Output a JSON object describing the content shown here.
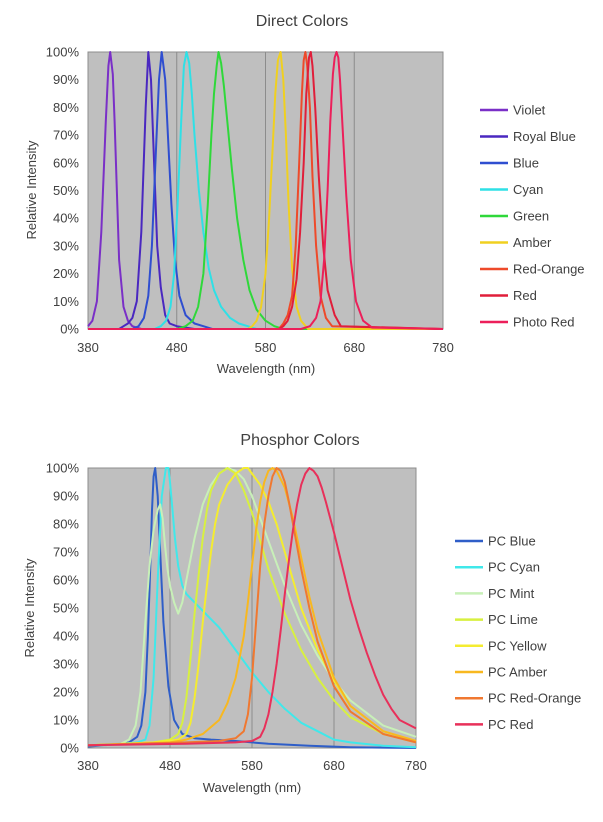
{
  "chart_data": [
    {
      "type": "line",
      "title": "Direct Colors",
      "xlabel": "Wavelength (nm)",
      "ylabel": "Relative Intensity",
      "xlim": [
        380,
        780
      ],
      "ylim": [
        0,
        100
      ],
      "xticks": [
        380,
        480,
        580,
        680,
        780
      ],
      "yticks": [
        "0%",
        "10%",
        "20%",
        "30%",
        "40%",
        "50%",
        "60%",
        "70%",
        "80%",
        "90%",
        "100%"
      ],
      "grid": true,
      "legend": "right",
      "series": [
        {
          "name": "Violet",
          "color": "#7a2fc7",
          "x": [
            380,
            385,
            390,
            395,
            400,
            403,
            405,
            408,
            410,
            413,
            415,
            420,
            425,
            430,
            435,
            440,
            450,
            780
          ],
          "y": [
            1,
            3,
            10,
            35,
            75,
            95,
            100,
            92,
            75,
            45,
            25,
            8,
            3,
            1,
            0.5,
            0,
            0,
            0
          ]
        },
        {
          "name": "Royal Blue",
          "color": "#4a28c0",
          "x": [
            380,
            415,
            420,
            425,
            430,
            435,
            440,
            445,
            448,
            451,
            455,
            458,
            462,
            467,
            472,
            480,
            490,
            500,
            510,
            780
          ],
          "y": [
            0,
            0,
            1,
            2,
            4,
            10,
            35,
            80,
            100,
            90,
            55,
            30,
            15,
            5,
            2,
            1,
            0.5,
            0,
            0,
            0
          ]
        },
        {
          "name": "Blue",
          "color": "#2f4ed0",
          "x": [
            380,
            430,
            437,
            443,
            448,
            452,
            456,
            460,
            463,
            467,
            470,
            474,
            478,
            483,
            490,
            500,
            510,
            520,
            780
          ],
          "y": [
            0,
            0,
            1,
            4,
            12,
            30,
            60,
            90,
            100,
            90,
            70,
            45,
            25,
            12,
            5,
            2,
            1,
            0,
            0
          ]
        },
        {
          "name": "Cyan",
          "color": "#2fe0e6",
          "x": [
            380,
            455,
            462,
            468,
            473,
            477,
            481,
            485,
            488,
            491,
            494,
            497,
            500,
            505,
            510,
            516,
            522,
            530,
            540,
            550,
            560,
            570,
            780
          ],
          "y": [
            0,
            0,
            1,
            3,
            8,
            20,
            45,
            75,
            95,
            100,
            96,
            85,
            70,
            50,
            35,
            22,
            14,
            8,
            4,
            2,
            1,
            0,
            0
          ]
        },
        {
          "name": "Green",
          "color": "#2fd83a",
          "x": [
            380,
            480,
            490,
            498,
            504,
            510,
            515,
            519,
            522,
            525,
            527,
            530,
            533,
            537,
            542,
            548,
            555,
            562,
            570,
            580,
            590,
            600,
            780
          ],
          "y": [
            0,
            0,
            1,
            3,
            8,
            20,
            45,
            70,
            85,
            95,
            100,
            96,
            88,
            75,
            58,
            40,
            25,
            14,
            7,
            3,
            1,
            0,
            0
          ]
        },
        {
          "name": "Amber",
          "color": "#f0d020",
          "x": [
            380,
            560,
            565,
            570,
            575,
            580,
            584,
            588,
            591,
            594,
            597,
            600,
            603,
            606,
            610,
            615,
            620,
            628,
            780
          ],
          "y": [
            0,
            0,
            1,
            3,
            8,
            20,
            40,
            65,
            85,
            97,
            100,
            90,
            70,
            45,
            22,
            8,
            3,
            0,
            0
          ]
        },
        {
          "name": "Red-Orange",
          "color": "#ee4a2a",
          "x": [
            380,
            595,
            600,
            605,
            610,
            614,
            618,
            621,
            623,
            625,
            627,
            630,
            633,
            637,
            642,
            648,
            655,
            780
          ],
          "y": [
            0,
            0,
            2,
            5,
            12,
            30,
            60,
            85,
            97,
            100,
            95,
            80,
            55,
            30,
            12,
            4,
            1,
            0
          ]
        },
        {
          "name": "Red",
          "color": "#e01e3a",
          "x": [
            380,
            595,
            600,
            605,
            610,
            615,
            619,
            623,
            626,
            629,
            631,
            633,
            636,
            640,
            645,
            650,
            658,
            665,
            780
          ],
          "y": [
            0,
            0,
            1,
            3,
            8,
            18,
            35,
            60,
            85,
            98,
            100,
            95,
            80,
            55,
            30,
            14,
            5,
            1,
            0
          ]
        },
        {
          "name": "Photo Red",
          "color": "#ec1f5a",
          "x": [
            380,
            620,
            630,
            637,
            642,
            646,
            650,
            653,
            656,
            658,
            660,
            662,
            664,
            667,
            671,
            676,
            682,
            690,
            700,
            780
          ],
          "y": [
            0,
            0,
            1,
            4,
            10,
            25,
            50,
            75,
            92,
            98,
            100,
            98,
            90,
            72,
            48,
            25,
            10,
            3,
            0.5,
            0
          ]
        }
      ]
    },
    {
      "type": "line",
      "title": "Phosphor Colors",
      "xlabel": "Wavelength (nm)",
      "ylabel": "Relative Intensity",
      "xlim": [
        380,
        780
      ],
      "ylim": [
        0,
        100
      ],
      "xticks": [
        380,
        480,
        580,
        680,
        780
      ],
      "yticks": [
        "0%",
        "10%",
        "20%",
        "30%",
        "40%",
        "50%",
        "60%",
        "70%",
        "80%",
        "90%",
        "100%"
      ],
      "grid": true,
      "legend": "right",
      "series": [
        {
          "name": "PC Blue",
          "color": "#2f5ec8",
          "x": [
            380,
            400,
            420,
            430,
            440,
            445,
            450,
            453,
            456,
            458,
            460,
            462,
            465,
            468,
            472,
            478,
            485,
            495,
            510,
            530,
            560,
            600,
            650,
            700,
            780
          ],
          "y": [
            0.5,
            1,
            1.5,
            2,
            4,
            8,
            20,
            40,
            65,
            85,
            97,
            100,
            90,
            70,
            45,
            22,
            10,
            5,
            3.5,
            3,
            2.5,
            1.5,
            0.8,
            0.3,
            0
          ]
        },
        {
          "name": "PC Cyan",
          "color": "#40e8ea",
          "x": [
            380,
            420,
            440,
            450,
            455,
            460,
            465,
            470,
            475,
            478,
            480,
            483,
            486,
            490,
            495,
            500,
            510,
            520,
            530,
            540,
            550,
            560,
            570,
            580,
            600,
            620,
            640,
            660,
            680,
            700,
            740,
            780
          ],
          "y": [
            1,
            1.5,
            2,
            3,
            8,
            25,
            60,
            90,
            100,
            100,
            95,
            85,
            75,
            65,
            58,
            55,
            52,
            49,
            46,
            43,
            39,
            35,
            31,
            27,
            20,
            14,
            9,
            6,
            3,
            2,
            0.8,
            0.3
          ]
        },
        {
          "name": "PC Mint",
          "color": "#c8f0b8",
          "x": [
            380,
            400,
            420,
            430,
            438,
            444,
            450,
            455,
            460,
            465,
            468,
            471,
            474,
            477,
            480,
            485,
            490,
            495,
            500,
            510,
            520,
            530,
            540,
            550,
            560,
            570,
            580,
            590,
            600,
            620,
            640,
            660,
            680,
            700,
            740,
            780
          ],
          "y": [
            1,
            1,
            1.5,
            3,
            8,
            20,
            45,
            65,
            78,
            85,
            87,
            82,
            72,
            64,
            58,
            52,
            48,
            52,
            60,
            75,
            87,
            94,
            98,
            100,
            99,
            96,
            90,
            82,
            74,
            58,
            44,
            33,
            24,
            17,
            8,
            4
          ]
        },
        {
          "name": "PC Lime",
          "color": "#d8f040",
          "x": [
            380,
            430,
            460,
            480,
            490,
            495,
            500,
            505,
            510,
            515,
            520,
            525,
            530,
            540,
            550,
            560,
            570,
            580,
            590,
            600,
            620,
            640,
            660,
            680,
            700,
            740,
            780
          ],
          "y": [
            1,
            1.5,
            2,
            3,
            5,
            9,
            18,
            32,
            48,
            62,
            75,
            85,
            92,
            98,
            100,
            98,
            92,
            84,
            74,
            64,
            48,
            35,
            25,
            17,
            11,
            5,
            2
          ]
        },
        {
          "name": "PC Yellow",
          "color": "#f4ec30",
          "x": [
            380,
            460,
            490,
            500,
            505,
            510,
            515,
            520,
            525,
            530,
            535,
            540,
            550,
            560,
            570,
            575,
            580,
            590,
            600,
            610,
            620,
            630,
            640,
            660,
            680,
            700,
            740,
            780
          ],
          "y": [
            1,
            2,
            3,
            5,
            9,
            18,
            30,
            45,
            58,
            70,
            80,
            87,
            94,
            98,
            100,
            100,
            98,
            94,
            88,
            80,
            70,
            60,
            50,
            35,
            24,
            15,
            6,
            2.5
          ]
        },
        {
          "name": "PC Amber",
          "color": "#f8b820",
          "x": [
            380,
            480,
            500,
            520,
            540,
            550,
            560,
            570,
            575,
            580,
            585,
            590,
            595,
            600,
            605,
            610,
            620,
            630,
            640,
            650,
            660,
            680,
            700,
            740,
            780
          ],
          "y": [
            1,
            2,
            3,
            5,
            10,
            16,
            25,
            40,
            52,
            65,
            78,
            88,
            95,
            99,
            100,
            99,
            93,
            82,
            68,
            54,
            42,
            25,
            15,
            6,
            2.5
          ]
        },
        {
          "name": "PC Red-Orange",
          "color": "#f07830",
          "x": [
            380,
            500,
            540,
            560,
            570,
            575,
            580,
            585,
            590,
            595,
            600,
            605,
            610,
            615,
            620,
            625,
            630,
            640,
            650,
            660,
            680,
            700,
            740,
            780
          ],
          "y": [
            1,
            2,
            2.5,
            3.5,
            6,
            12,
            25,
            45,
            65,
            80,
            90,
            97,
            100,
            99,
            95,
            88,
            80,
            64,
            50,
            38,
            22,
            13,
            5,
            2
          ]
        },
        {
          "name": "PC Red",
          "color": "#e8305a",
          "x": [
            380,
            500,
            560,
            580,
            590,
            595,
            600,
            605,
            610,
            615,
            620,
            625,
            630,
            635,
            640,
            645,
            650,
            655,
            660,
            665,
            670,
            680,
            690,
            700,
            710,
            720,
            730,
            740,
            750,
            760,
            780
          ],
          "y": [
            1,
            1.5,
            2,
            2.5,
            4,
            7,
            12,
            20,
            30,
            42,
            55,
            67,
            78,
            87,
            94,
            98,
            100,
            99,
            97,
            93,
            88,
            77,
            65,
            53,
            43,
            34,
            26,
            19,
            14,
            10,
            7
          ]
        }
      ]
    }
  ]
}
